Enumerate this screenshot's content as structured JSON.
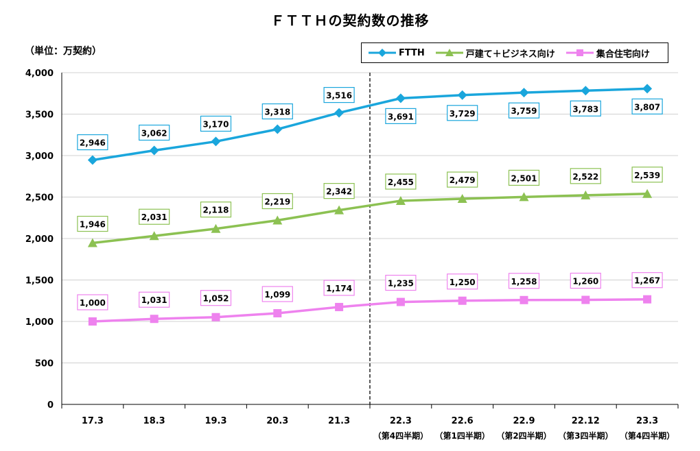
{
  "chart_data": {
    "type": "line",
    "title": "ＦＴＴＨの契約数の推移",
    "unit": "（単位：万契約）",
    "categories": [
      "17.3",
      "18.3",
      "19.3",
      "20.3",
      "21.3",
      "22.3",
      "22.6",
      "22.9",
      "22.12",
      "23.3"
    ],
    "category_subs": [
      "",
      "",
      "",
      "",
      "",
      "（第4四半期）",
      "（第1四半期）",
      "（第2四半期）",
      "（第3四半期）",
      "（第4四半期）"
    ],
    "y_ticks": [
      "0",
      "500",
      "1,000",
      "1,500",
      "2,000",
      "2,500",
      "3,000",
      "3,500",
      "4,000"
    ],
    "ylim": [
      0,
      4000
    ],
    "grid": true,
    "divider_after_category": "21.3",
    "legend_position": "top-right",
    "series": [
      {
        "name": "FTTH",
        "color": "#1aa6dc",
        "marker": "diamond",
        "values": [
          2946,
          3062,
          3170,
          3318,
          3516,
          3691,
          3729,
          3759,
          3783,
          3807
        ],
        "labels": [
          "2,946",
          "3,062",
          "3,170",
          "3,318",
          "3,516",
          "3,691",
          "3,729",
          "3,759",
          "3,783",
          "3,807"
        ]
      },
      {
        "name": "戸建て＋ビジネス向け",
        "color": "#8cc152",
        "marker": "triangle",
        "values": [
          1946,
          2031,
          2118,
          2219,
          2342,
          2455,
          2479,
          2501,
          2522,
          2539
        ],
        "labels": [
          "1,946",
          "2,031",
          "2,118",
          "2,219",
          "2,342",
          "2,455",
          "2,479",
          "2,501",
          "2,522",
          "2,539"
        ]
      },
      {
        "name": "集合住宅向け",
        "color": "#ee82ee",
        "marker": "square",
        "values": [
          1000,
          1031,
          1052,
          1099,
          1174,
          1235,
          1250,
          1258,
          1260,
          1267
        ],
        "labels": [
          "1,000",
          "1,031",
          "1,052",
          "1,099",
          "1,174",
          "1,235",
          "1,250",
          "1,258",
          "1,260",
          "1,267"
        ]
      }
    ]
  }
}
